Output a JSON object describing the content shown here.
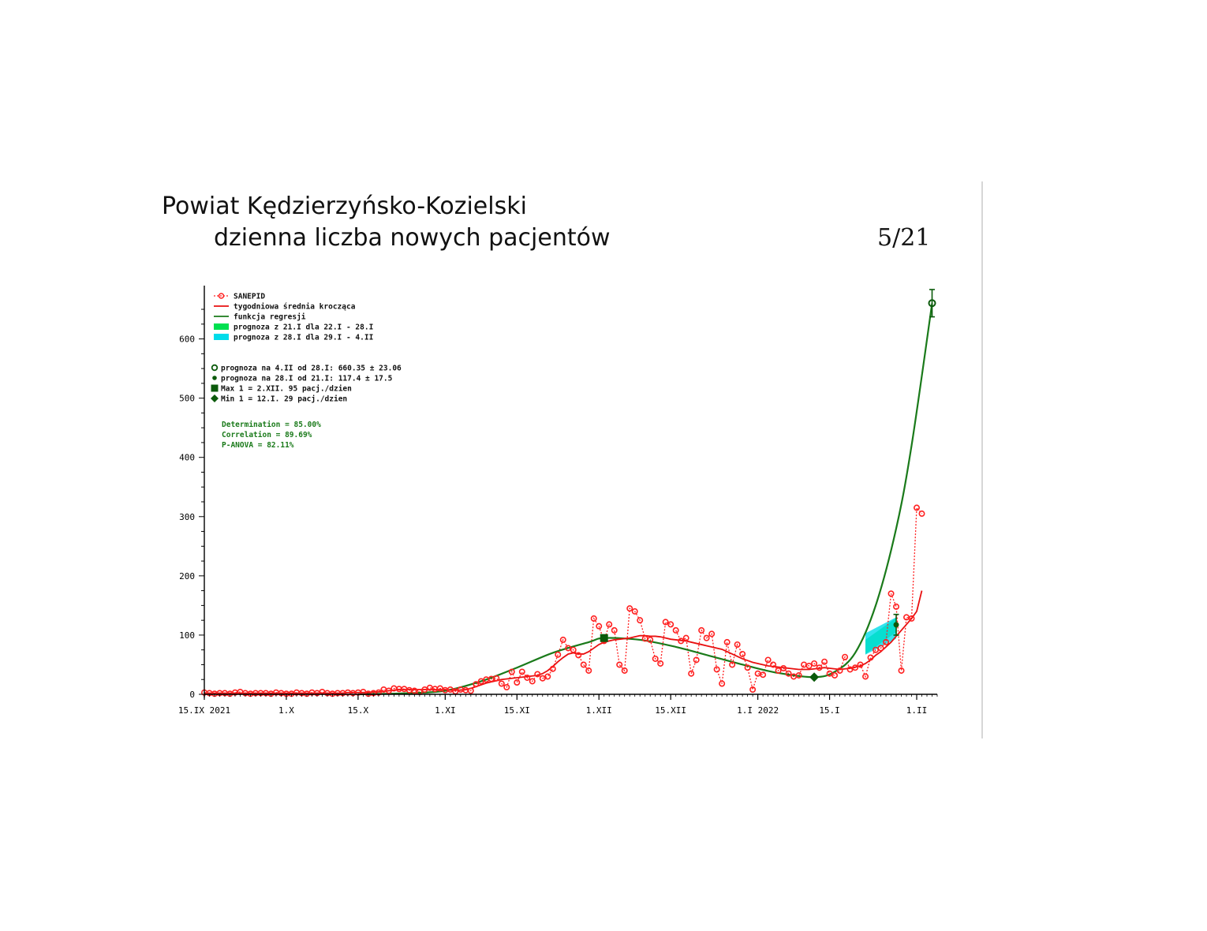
{
  "title_line1": "Powiat Kędzierzyńsko-Kozielski",
  "title_line2": "dzienna liczba nowych pacjentów",
  "page_number": "5/21",
  "chart_data": {
    "type": "scatter",
    "x_start_date": "2021-09-15",
    "xlim": [
      "2021-09-15",
      "2022-02-05"
    ],
    "ylim": [
      0,
      690
    ],
    "yticks": [
      0,
      100,
      200,
      300,
      400,
      500,
      600
    ],
    "x_tick_labels": [
      {
        "date": "2021-09-15",
        "label": "15.IX 2021"
      },
      {
        "date": "2021-10-01",
        "label": "1.X"
      },
      {
        "date": "2021-10-15",
        "label": "15.X"
      },
      {
        "date": "2021-11-01",
        "label": "1.XI"
      },
      {
        "date": "2021-11-15",
        "label": "15.XI"
      },
      {
        "date": "2021-12-01",
        "label": "1.XII"
      },
      {
        "date": "2021-12-15",
        "label": "15.XII"
      },
      {
        "date": "2022-01-01",
        "label": "1.I 2022"
      },
      {
        "date": "2022-01-15",
        "label": "15.I"
      },
      {
        "date": "2022-02-01",
        "label": "1.II"
      }
    ],
    "legend": {
      "series": [
        "SANEPID",
        "tygodniowa średnia krocząca",
        "funkcja regresji",
        "prognoza z 21.I dla 22.I - 28.I",
        "prognoza z 28.I dla 29.I - 4.II"
      ],
      "markers": [
        "prognoza na 4.II od 28.I: 660.35 ± 23.06",
        "prognoza na 28.I od 21.I: 117.4 ± 17.5",
        "Max 1 = 2.XII. 95 pacj./dzien",
        "Min 1 = 12.I. 29 pacj./dzien"
      ],
      "stats": [
        "Determination = 85.00%",
        "Correlation = 89.69%",
        "P-ANOVA = 82.11%"
      ]
    },
    "colors": {
      "sanepid": "#ff2020",
      "moving_avg": "#e81010",
      "regression": "#1a7a1a",
      "band_green": "#00e050",
      "band_cyan": "#00dcea",
      "marker": "#0b5a0b"
    },
    "sanepid": {
      "start_date": "2021-09-15",
      "values": [
        3,
        2,
        1,
        2,
        2,
        1,
        3,
        4,
        2,
        1,
        2,
        2,
        2,
        1,
        3,
        2,
        1,
        1,
        3,
        2,
        1,
        3,
        2,
        4,
        2,
        1,
        2,
        2,
        3,
        2,
        3,
        4,
        1,
        2,
        3,
        8,
        6,
        10,
        9,
        9,
        7,
        6,
        4,
        8,
        11,
        9,
        10,
        7,
        8,
        5,
        8,
        7,
        6,
        17,
        22,
        25,
        26,
        27,
        18,
        12,
        38,
        20,
        38,
        28,
        22,
        34,
        27,
        30,
        43,
        67,
        92,
        78,
        75,
        66,
        50,
        40,
        128,
        115,
        90,
        118,
        108,
        50,
        40,
        145,
        140,
        125,
        94,
        92,
        60,
        52,
        122,
        118,
        108,
        90,
        95,
        35,
        58,
        108,
        95,
        102,
        42,
        18,
        88,
        50,
        84,
        68,
        45,
        8,
        35,
        33,
        58,
        50,
        40,
        44,
        35,
        30,
        32,
        50,
        48,
        52,
        45,
        55,
        35,
        32,
        40,
        63,
        42,
        45,
        50,
        30,
        62,
        75,
        78,
        88,
        170,
        148,
        40,
        130,
        128,
        315,
        305
      ],
      "xlim_note": ""
    },
    "moving_avg": {
      "start_date": "2021-09-15",
      "values": [
        2,
        2,
        2,
        2,
        2,
        2,
        2,
        2,
        2,
        2,
        2,
        2,
        2,
        2,
        2,
        2,
        2,
        2,
        2,
        2,
        2,
        2,
        2,
        2,
        2,
        2,
        2,
        2,
        3,
        3,
        3,
        3,
        3,
        4,
        4,
        5,
        6,
        7,
        8,
        8,
        8,
        8,
        8,
        8,
        8,
        8,
        8,
        8,
        7,
        7,
        7,
        8,
        10,
        13,
        16,
        19,
        21,
        23,
        25,
        26,
        27,
        28,
        29,
        30,
        31,
        32,
        35,
        40,
        47,
        55,
        62,
        68,
        70,
        68,
        68,
        72,
        78,
        84,
        88,
        90,
        92,
        93,
        94,
        95,
        97,
        99,
        99,
        98,
        98,
        97,
        95,
        93,
        92,
        91,
        90,
        88,
        86,
        84,
        82,
        80,
        78,
        76,
        72,
        68,
        64,
        60,
        57,
        54,
        52,
        50,
        48,
        47,
        46,
        45,
        44,
        43,
        42,
        42,
        42,
        43,
        44,
        45,
        44,
        43,
        42,
        43,
        44,
        46,
        48,
        52,
        58,
        66,
        72,
        80,
        88,
        98,
        108,
        118,
        128,
        140,
        175
      ]
    },
    "regression": {
      "points": [
        [
          "2021-10-15",
          0
        ],
        [
          "2021-10-25",
          2
        ],
        [
          "2021-11-01",
          6
        ],
        [
          "2021-11-08",
          22
        ],
        [
          "2021-11-15",
          45
        ],
        [
          "2021-11-22",
          70
        ],
        [
          "2021-11-29",
          88
        ],
        [
          "2021-12-02",
          95
        ],
        [
          "2021-12-09",
          92
        ],
        [
          "2021-12-16",
          80
        ],
        [
          "2021-12-23",
          64
        ],
        [
          "2021-12-30",
          48
        ],
        [
          "2022-01-05",
          36
        ],
        [
          "2022-01-12",
          29
        ],
        [
          "2022-01-16",
          38
        ],
        [
          "2022-01-20",
          70
        ],
        [
          "2022-01-24",
          150
        ],
        [
          "2022-01-28",
          280
        ],
        [
          "2022-01-31",
          420
        ],
        [
          "2022-02-04",
          660
        ]
      ]
    },
    "forecast_bands": [
      {
        "from": "2022-01-22",
        "to": "2022-01-28",
        "center_start": 80,
        "center_end": 117,
        "halfwidth": 12
      },
      {
        "from": "2022-01-22",
        "to": "2022-01-28",
        "center_start": 85,
        "center_end": 112,
        "halfwidth": 18
      }
    ],
    "markers": [
      {
        "kind": "open-circle",
        "date": "2022-02-04",
        "value": 660.35,
        "err": 23.06
      },
      {
        "kind": "dot",
        "date": "2022-01-28",
        "value": 117.4,
        "err": 17.5
      },
      {
        "kind": "square",
        "date": "2021-12-02",
        "value": 95
      },
      {
        "kind": "diamond",
        "date": "2022-01-12",
        "value": 29
      }
    ]
  }
}
